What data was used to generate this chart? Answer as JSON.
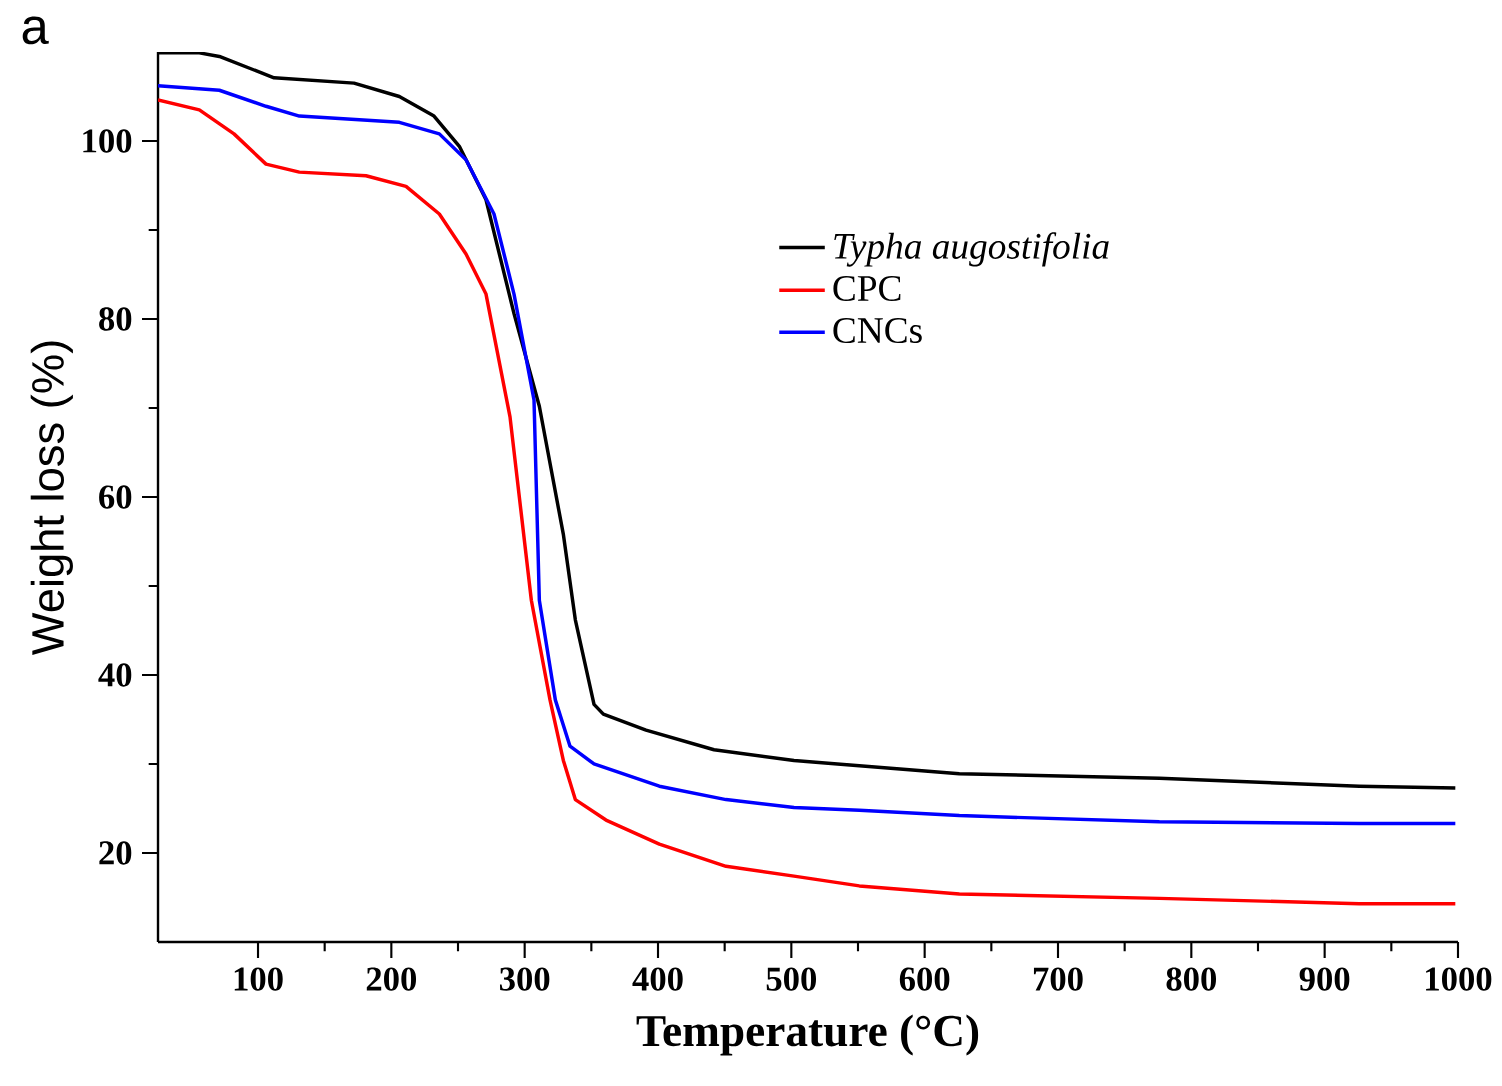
{
  "chart_data": {
    "type": "line",
    "xlabel": "Temperature (°C)",
    "ylabel": "Weight loss (%)",
    "annotations": [
      "a"
    ],
    "xlim": [
      25,
      1000
    ],
    "ylim": [
      10,
      110
    ],
    "xticks": [
      100,
      200,
      300,
      400,
      500,
      600,
      700,
      800,
      900,
      1000
    ],
    "yticks": [
      20,
      40,
      60,
      80,
      100
    ],
    "legend": "top right",
    "grid": false,
    "marker": "none",
    "line_style": "solid",
    "series": [
      {
        "name": "Typha augostifolia",
        "color": "#000000",
        "x": [
          25,
          56,
          71,
          112,
          172,
          206,
          232,
          251,
          271,
          292,
          311,
          329,
          338,
          352,
          359,
          391,
          442,
          502,
          551,
          626,
          776,
          926,
          998
        ],
        "values": [
          109.9,
          109.9,
          109.5,
          107.1,
          106.5,
          105,
          102.8,
          99.4,
          93.4,
          80.6,
          70.2,
          55.8,
          46.2,
          36.7,
          35.6,
          33.8,
          31.6,
          30.4,
          29.8,
          28.9,
          28.4,
          27.5,
          27.3
        ]
      },
      {
        "name": "CPC",
        "color": "#ff0000",
        "x": [
          25,
          56,
          82,
          106,
          131,
          181,
          211,
          236,
          256,
          271,
          289,
          305,
          319,
          329,
          338,
          361,
          401,
          451,
          502,
          551,
          626,
          776,
          926,
          998
        ],
        "values": [
          104.6,
          103.5,
          100.8,
          97.4,
          96.5,
          96.1,
          94.9,
          91.8,
          87.3,
          82.8,
          69,
          48.4,
          37.2,
          30.4,
          26,
          23.7,
          21,
          18.5,
          17.4,
          16.3,
          15.4,
          14.9,
          14.3,
          14.3
        ]
      },
      {
        "name": "CNCs",
        "color": "#0000ff",
        "x": [
          25,
          71,
          106,
          131,
          206,
          236,
          256,
          277,
          292,
          307,
          311,
          323,
          334,
          352,
          401,
          451,
          502,
          551,
          626,
          776,
          926,
          998
        ],
        "values": [
          106.2,
          105.7,
          103.9,
          102.8,
          102.1,
          100.8,
          97.9,
          91.8,
          82.8,
          70.9,
          48.4,
          37.2,
          32,
          30,
          27.5,
          26,
          25.1,
          24.8,
          24.2,
          23.5,
          23.3,
          23.3
        ]
      }
    ]
  }
}
